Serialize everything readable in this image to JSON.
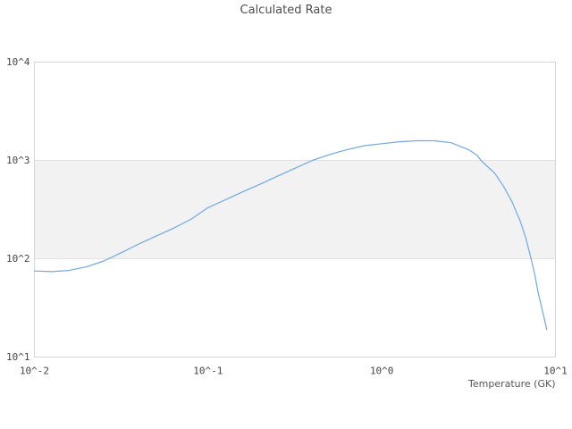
{
  "title": "Calculated Rate",
  "colors": {
    "background": "#ffffff",
    "line": "#70a8e6",
    "band": "#f2f2f2",
    "grid": "#e2e2e2",
    "frame": "#d6d6d6",
    "title_text": "#4d4d4d",
    "tick_text": "#454545",
    "axis_label_text": "#555555"
  },
  "chart_data": {
    "type": "line",
    "title": "Calculated Rate",
    "xlabel": "Temperature (GK)",
    "ylabel": "",
    "x_scale": "log",
    "y_scale": "log",
    "xlim": [
      0.01,
      10
    ],
    "ylim": [
      10,
      10000
    ],
    "grid": "horizontal decade gridlines only, no vertical gridlines",
    "legend": "none",
    "x_ticks": [
      {
        "label": "10^-2",
        "value": 0.01
      },
      {
        "label": "10^-1",
        "value": 0.1
      },
      {
        "label": "10^0",
        "value": 1
      },
      {
        "label": "10^1",
        "value": 10
      }
    ],
    "y_ticks": [
      {
        "label": "10^1",
        "value": 10
      },
      {
        "label": "10^2",
        "value": 100
      },
      {
        "label": "10^3",
        "value": 1000
      },
      {
        "label": "10^4",
        "value": 10000
      }
    ],
    "alt_band": {
      "from": 100,
      "to": 1000
    },
    "series": [
      {
        "name": "Calculated Rate",
        "x": [
          0.01,
          0.0126,
          0.0158,
          0.02,
          0.0251,
          0.0316,
          0.0398,
          0.0501,
          0.0631,
          0.0794,
          0.1,
          0.126,
          0.158,
          0.2,
          0.251,
          0.316,
          0.398,
          0.501,
          0.631,
          0.794,
          1.0,
          1.26,
          1.58,
          2.0,
          2.51,
          3.16,
          3.55,
          3.72,
          4.47,
          5.01,
          5.62,
          6.31,
          6.76,
          7.24,
          7.59,
          7.94,
          8.32,
          8.91
        ],
        "y": [
          75,
          74,
          76,
          83,
          95,
          115,
          141,
          170,
          204,
          251,
          331,
          398,
          479,
          575,
          692,
          832,
          1000,
          1148,
          1288,
          1413,
          1479,
          1549,
          1585,
          1585,
          1514,
          1288,
          1122,
          1000,
          741,
          550,
          380,
          234,
          160,
          100,
          70,
          46,
          32,
          19
        ]
      }
    ]
  }
}
